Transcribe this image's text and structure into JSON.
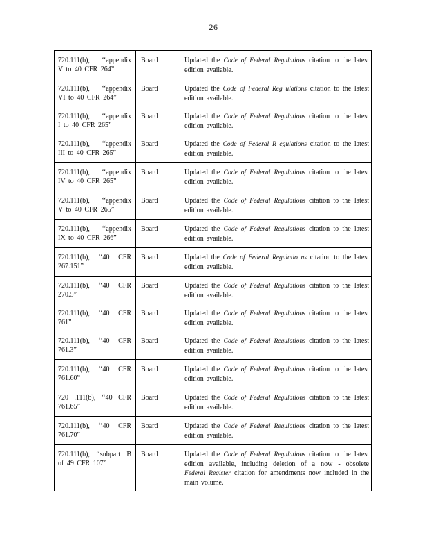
{
  "page": {
    "number": "26"
  },
  "colors": {
    "background": "#ffffff",
    "border": "#000000",
    "text": "#111111"
  },
  "table": {
    "groups": [
      {
        "rows": [
          {
            "citation_lines": [
              "720.111(b), ‘‘appendix",
              "V to 40 CFR 264”"
            ],
            "actor": "Board",
            "description": [
              {
                "text": "Updated the ",
                "italic": false
              },
              {
                "text": "Code of Federal Regulations",
                "italic": true
              },
              {
                "text": " citation to the latest edition available.",
                "italic": false
              }
            ]
          }
        ]
      },
      {
        "rows": [
          {
            "citation_lines": [
              "720.111(b), ‘‘appendix",
              "VI to 40 CFR 264”"
            ],
            "actor": "Board",
            "description": [
              {
                "text": "Updated the ",
                "italic": false
              },
              {
                "text": "Code of Federal Reg ulations",
                "italic": true
              },
              {
                "text": " citation to the latest edition available.",
                "italic": false
              }
            ]
          },
          {
            "citation_lines": [
              "720.111(b), ‘‘appendix",
              "I to 40 CFR 265”"
            ],
            "actor": "Board",
            "description": [
              {
                "text": "Updated the ",
                "italic": false
              },
              {
                "text": "Code of Federal Regulations",
                "italic": true
              },
              {
                "text": " citation to the latest edition available.",
                "italic": false
              }
            ]
          },
          {
            "citation_lines": [
              "720.111(b), ‘‘appendix",
              "III to 40 CFR 265”"
            ],
            "actor": "Board",
            "description": [
              {
                "text": "Updated the ",
                "italic": false
              },
              {
                "text": "Code of Federal R egulations",
                "italic": true
              },
              {
                "text": " citation to the latest edition available.",
                "italic": false
              }
            ]
          }
        ]
      },
      {
        "rows": [
          {
            "citation_lines": [
              "720.111(b), ‘‘appendix",
              "IV to 40 CFR 265”"
            ],
            "actor": "Board",
            "description": [
              {
                "text": "Updated the ",
                "italic": false
              },
              {
                "text": "Code of Federal Regulations",
                "italic": true
              },
              {
                "text": " citation to the latest edition available.",
                "italic": false
              }
            ]
          }
        ]
      },
      {
        "rows": [
          {
            "citation_lines": [
              "720.111(b), ‘‘appendix",
              "V to 40 CFR 265”"
            ],
            "actor": "Board",
            "description": [
              {
                "text": "Updated the ",
                "italic": false
              },
              {
                "text": "Code of Federal Regulations",
                "italic": true
              },
              {
                "text": " citation to the latest edition available.",
                "italic": false
              }
            ]
          }
        ]
      },
      {
        "rows": [
          {
            "citation_lines": [
              "720.111(b), ‘‘appendix",
              "IX to 40 CFR 266”"
            ],
            "actor": "Board",
            "description": [
              {
                "text": "Updated the ",
                "italic": false
              },
              {
                "text": "Code of Federal Regulations",
                "italic": true
              },
              {
                "text": " citation to the latest edition available.",
                "italic": false
              }
            ]
          }
        ]
      },
      {
        "rows": [
          {
            "citation_lines": [
              "720.111(b), ‘‘40 CFR",
              "267.151”"
            ],
            "actor": "Board",
            "description": [
              {
                "text": "Updated the ",
                "italic": false
              },
              {
                "text": "Code of Federal Regulatio ns",
                "italic": true
              },
              {
                "text": " citation to the latest edition available.",
                "italic": false
              }
            ]
          }
        ]
      },
      {
        "rows": [
          {
            "citation_lines": [
              "720.111(b), ‘‘40 CFR",
              "270.5”"
            ],
            "actor": "Board",
            "description": [
              {
                "text": "Updated the ",
                "italic": false
              },
              {
                "text": "Code of Federal Regulations",
                "italic": true
              },
              {
                "text": " citation to the latest edition available.",
                "italic": false
              }
            ]
          },
          {
            "citation_lines": [
              "720.111(b), ‘‘40 CFR",
              "761”"
            ],
            "actor": "Board",
            "description": [
              {
                "text": "Updated the ",
                "italic": false
              },
              {
                "text": "Code of Federal Regulations",
                "italic": true
              },
              {
                "text": " citation to the latest edition available.",
                "italic": false
              }
            ]
          },
          {
            "citation_lines": [
              "720.111(b), ‘‘40 CFR",
              "761.3”"
            ],
            "actor": "Board",
            "description": [
              {
                "text": "Updated the ",
                "italic": false
              },
              {
                "text": "Code of Federal Regulations",
                "italic": true
              },
              {
                "text": " citation to the latest edition available.",
                "italic": false
              }
            ]
          }
        ]
      },
      {
        "rows": [
          {
            "citation_lines": [
              "720.111(b), ‘‘40 CFR",
              "761.60”"
            ],
            "actor": "Board",
            "description": [
              {
                "text": "Updated the ",
                "italic": false
              },
              {
                "text": "Code of Federal Regulations",
                "italic": true
              },
              {
                "text": " citation to the latest edition available.",
                "italic": false
              }
            ]
          }
        ]
      },
      {
        "rows": [
          {
            "citation_lines": [
              "720 .111(b), ‘‘40 CFR",
              "761.65”"
            ],
            "actor": "Board",
            "description": [
              {
                "text": "Updated the ",
                "italic": false
              },
              {
                "text": "Code of Federal Regulations",
                "italic": true
              },
              {
                "text": " citation to the latest edition available.",
                "italic": false
              }
            ]
          }
        ]
      },
      {
        "rows": [
          {
            "citation_lines": [
              "720.111(b), ‘‘40 CFR",
              "761.70”"
            ],
            "actor": "Board",
            "description": [
              {
                "text": "Updated the ",
                "italic": false
              },
              {
                "text": "Code of Federal Regulations",
                "italic": true
              },
              {
                "text": " citation to the latest edition available.",
                "italic": false
              }
            ]
          }
        ]
      },
      {
        "rows": [
          {
            "citation_lines": [
              "720.111(b), ‘‘subpart B",
              "of 49 CFR 107”"
            ],
            "actor": "Board",
            "description": [
              {
                "text": "Updated the ",
                "italic": false
              },
              {
                "text": "Code of Federal Regulations",
                "italic": true
              },
              {
                "text": " citation to the latest edition available, including deletion of a now - obsolete ",
                "italic": false
              },
              {
                "text": "Federal Register",
                "italic": true
              },
              {
                "text": " citation for amendments now included in the main volume.",
                "italic": false
              }
            ]
          }
        ]
      }
    ]
  }
}
